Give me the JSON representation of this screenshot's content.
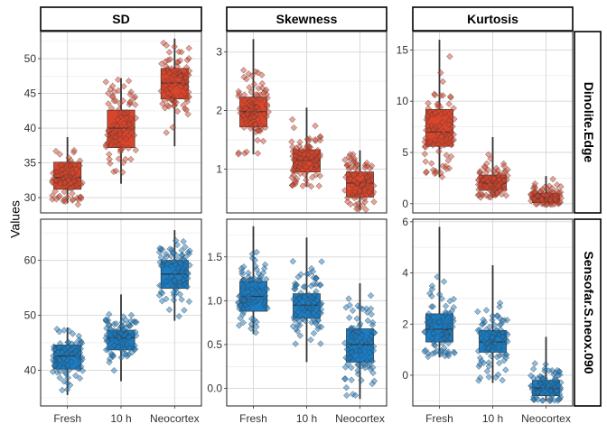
{
  "chart_data": {
    "type": "boxplot-jitter-facets",
    "ylabel": "Values",
    "categories": [
      "Fresh",
      "10 h",
      "Neocortex"
    ],
    "columns": [
      "SD",
      "Skewness",
      "Kurtosis"
    ],
    "rows": [
      "Dinolite.Edge",
      "Sensofar.S.neox.090"
    ],
    "row_colors": {
      "Dinolite.Edge": "#D9452B",
      "Sensofar.S.neox.090": "#1B7CC2"
    },
    "panels": [
      {
        "row": "Dinolite.Edge",
        "column": "SD",
        "ylim": [
          27.8,
          53.9
        ],
        "yticks": [
          30,
          35,
          40,
          45,
          50
        ],
        "boxes": [
          {
            "category": "Fresh",
            "whisker_low": 29.2,
            "q1": 31.2,
            "median": 32.9,
            "q3": 35.1,
            "whisker_high": 38.7,
            "n": 80,
            "spread": [
              29.0,
              38.8
            ]
          },
          {
            "category": "10 h",
            "whisker_low": 32.0,
            "q1": 37.2,
            "median": 40.0,
            "q3": 42.6,
            "whisker_high": 47.2,
            "n": 85,
            "spread": [
              32.5,
              47.0
            ]
          },
          {
            "category": "Neocortex",
            "whisker_low": 37.4,
            "q1": 44.2,
            "median": 46.5,
            "q3": 48.6,
            "whisker_high": 52.9,
            "n": 85,
            "spread": [
              37.5,
              52.7
            ]
          }
        ]
      },
      {
        "row": "Dinolite.Edge",
        "column": "Skewness",
        "ylim": [
          0.25,
          3.35
        ],
        "yticks": [
          1,
          2,
          3
        ],
        "boxes": [
          {
            "category": "Fresh",
            "whisker_low": 1.25,
            "q1": 1.72,
            "median": 1.98,
            "q3": 2.23,
            "whisker_high": 3.22,
            "n": 85,
            "spread": [
              1.25,
              3.2
            ]
          },
          {
            "category": "10 h",
            "whisker_low": 0.7,
            "q1": 0.95,
            "median": 1.15,
            "q3": 1.33,
            "whisker_high": 2.05,
            "n": 90,
            "spread": [
              0.7,
              1.95
            ]
          },
          {
            "category": "Neocortex",
            "whisker_low": 0.3,
            "q1": 0.52,
            "median": 0.76,
            "q3": 0.95,
            "whisker_high": 1.32,
            "n": 85,
            "spread": [
              0.3,
              1.32
            ]
          }
        ]
      },
      {
        "row": "Dinolite.Edge",
        "column": "Kurtosis",
        "ylim": [
          -0.9,
          16.8
        ],
        "yticks": [
          0,
          5,
          10,
          15
        ],
        "boxes": [
          {
            "category": "Fresh",
            "whisker_low": 2.6,
            "q1": 5.6,
            "median": 7.0,
            "q3": 9.2,
            "whisker_high": 16.0,
            "n": 85,
            "spread": [
              2.6,
              15.9
            ]
          },
          {
            "category": "10 h",
            "whisker_low": 0.6,
            "q1": 1.3,
            "median": 2.0,
            "q3": 2.8,
            "whisker_high": 6.5,
            "n": 90,
            "spread": [
              0.6,
              6.2
            ]
          },
          {
            "category": "Neocortex",
            "whisker_low": -0.1,
            "q1": 0.1,
            "median": 0.5,
            "q3": 1.0,
            "whisker_high": 2.7,
            "n": 85,
            "spread": [
              -0.1,
              2.7
            ]
          }
        ]
      },
      {
        "row": "Sensofar.S.neox.090",
        "column": "SD",
        "ylim": [
          33.5,
          67.5
        ],
        "yticks": [
          40,
          50,
          60
        ],
        "boxes": [
          {
            "category": "Fresh",
            "whisker_low": 35.5,
            "q1": 40.2,
            "median": 42.6,
            "q3": 44.6,
            "whisker_high": 47.8,
            "n": 80,
            "spread": [
              35.5,
              47.8
            ]
          },
          {
            "category": "10 h",
            "whisker_low": 38.0,
            "q1": 43.7,
            "median": 45.9,
            "q3": 47.3,
            "whisker_high": 53.8,
            "n": 85,
            "spread": [
              38.0,
              53.8
            ]
          },
          {
            "category": "Neocortex",
            "whisker_low": 49.0,
            "q1": 54.9,
            "median": 57.5,
            "q3": 60.0,
            "whisker_high": 65.5,
            "n": 85,
            "spread": [
              48.5,
              65.5
            ]
          }
        ]
      },
      {
        "row": "Sensofar.S.neox.090",
        "column": "Skewness",
        "ylim": [
          -0.2,
          1.93
        ],
        "yticks": [
          0.0,
          0.5,
          1.0,
          1.5
        ],
        "boxes": [
          {
            "category": "Fresh",
            "whisker_low": 0.62,
            "q1": 0.88,
            "median": 1.05,
            "q3": 1.22,
            "whisker_high": 1.85,
            "n": 85,
            "spread": [
              0.6,
              1.85
            ]
          },
          {
            "category": "10 h",
            "whisker_low": 0.3,
            "q1": 0.8,
            "median": 0.95,
            "q3": 1.08,
            "whisker_high": 1.72,
            "n": 90,
            "spread": [
              0.3,
              1.76
            ]
          },
          {
            "category": "Neocortex",
            "whisker_low": -0.12,
            "q1": 0.3,
            "median": 0.5,
            "q3": 0.68,
            "whisker_high": 1.2,
            "n": 90,
            "spread": [
              -0.12,
              1.23
            ]
          }
        ]
      },
      {
        "row": "Sensofar.S.neox.090",
        "column": "Kurtosis",
        "ylim": [
          -1.2,
          6.1
        ],
        "yticks": [
          0,
          2,
          4,
          6
        ],
        "boxes": [
          {
            "category": "Fresh",
            "whisker_low": 0.7,
            "q1": 1.3,
            "median": 1.8,
            "q3": 2.4,
            "whisker_high": 5.8,
            "n": 85,
            "spread": [
              0.7,
              5.9
            ]
          },
          {
            "category": "10 h",
            "whisker_low": -0.3,
            "q1": 0.9,
            "median": 1.3,
            "q3": 1.75,
            "whisker_high": 4.3,
            "n": 90,
            "spread": [
              -0.3,
              4.3
            ]
          },
          {
            "category": "Neocortex",
            "whisker_low": -1.0,
            "q1": -0.8,
            "median": -0.5,
            "q3": -0.2,
            "whisker_high": 1.5,
            "n": 85,
            "spread": [
              -1.0,
              1.4
            ]
          }
        ]
      }
    ]
  }
}
